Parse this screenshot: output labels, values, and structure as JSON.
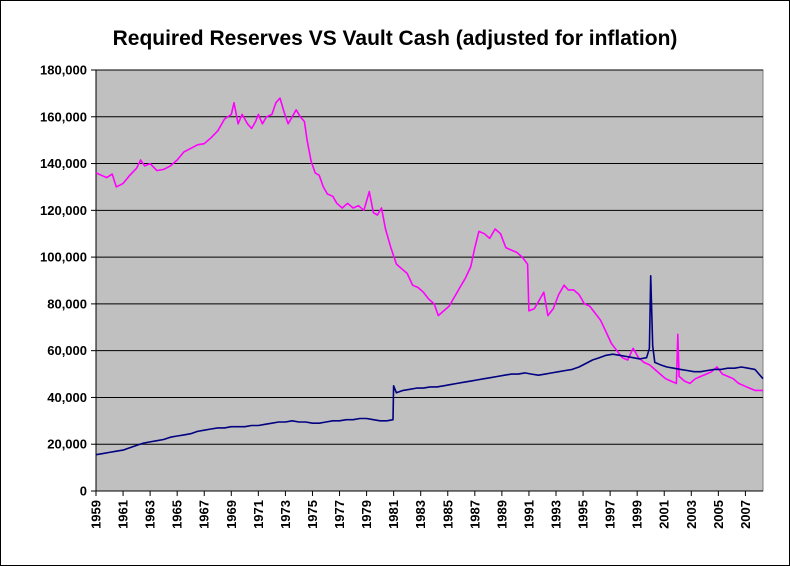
{
  "chart_data": {
    "type": "line",
    "title": "Required Reserves VS Vault Cash (adjusted for inflation)",
    "xlabel": "",
    "ylabel": "",
    "xlim": [
      1959,
      2008.3
    ],
    "ylim": [
      0,
      180000
    ],
    "y_ticks": [
      0,
      20000,
      40000,
      60000,
      80000,
      100000,
      120000,
      140000,
      160000,
      180000
    ],
    "y_tick_labels": [
      "0",
      "20,000",
      "40,000",
      "60,000",
      "80,000",
      "100,000",
      "120,000",
      "140,000",
      "160,000",
      "180,000"
    ],
    "x_ticks": [
      1959,
      1961,
      1963,
      1965,
      1967,
      1969,
      1971,
      1973,
      1975,
      1977,
      1979,
      1981,
      1983,
      1985,
      1987,
      1989,
      1991,
      1993,
      1995,
      1997,
      1999,
      2001,
      2003,
      2005,
      2007
    ],
    "grid": true,
    "legend": "none",
    "plot_background": "#c0c0c0",
    "series": [
      {
        "color": "#ff00ff",
        "points": [
          [
            1959.0,
            136000
          ],
          [
            1959.4,
            135000
          ],
          [
            1959.8,
            134000
          ],
          [
            1960.2,
            135500
          ],
          [
            1960.5,
            130000
          ],
          [
            1961.0,
            131500
          ],
          [
            1961.5,
            135000
          ],
          [
            1962.0,
            138000
          ],
          [
            1962.3,
            141500
          ],
          [
            1962.6,
            139000
          ],
          [
            1963.0,
            140000
          ],
          [
            1963.5,
            137000
          ],
          [
            1964.0,
            137500
          ],
          [
            1964.5,
            139000
          ],
          [
            1965.0,
            141500
          ],
          [
            1965.5,
            145000
          ],
          [
            1966.0,
            146500
          ],
          [
            1966.5,
            148000
          ],
          [
            1967.0,
            148500
          ],
          [
            1967.5,
            151000
          ],
          [
            1968.0,
            154000
          ],
          [
            1968.5,
            159000
          ],
          [
            1969.0,
            161000
          ],
          [
            1969.2,
            166000
          ],
          [
            1969.5,
            157000
          ],
          [
            1969.8,
            161000
          ],
          [
            1970.2,
            157000
          ],
          [
            1970.5,
            155000
          ],
          [
            1970.8,
            158000
          ],
          [
            1971.0,
            161000
          ],
          [
            1971.3,
            157000
          ],
          [
            1971.6,
            160000
          ],
          [
            1972.0,
            161000
          ],
          [
            1972.3,
            166000
          ],
          [
            1972.6,
            168000
          ],
          [
            1972.9,
            162000
          ],
          [
            1973.2,
            157000
          ],
          [
            1973.5,
            160000
          ],
          [
            1973.8,
            163000
          ],
          [
            1974.1,
            160000
          ],
          [
            1974.4,
            158000
          ],
          [
            1974.6,
            150000
          ],
          [
            1974.9,
            141000
          ],
          [
            1975.2,
            136000
          ],
          [
            1975.5,
            135000
          ],
          [
            1975.8,
            130000
          ],
          [
            1976.1,
            127000
          ],
          [
            1976.5,
            126000
          ],
          [
            1976.8,
            123000
          ],
          [
            1977.2,
            121000
          ],
          [
            1977.6,
            123000
          ],
          [
            1978.0,
            121000
          ],
          [
            1978.4,
            122000
          ],
          [
            1978.8,
            120000
          ],
          [
            1979.2,
            128000
          ],
          [
            1979.5,
            119000
          ],
          [
            1979.8,
            118000
          ],
          [
            1980.1,
            121000
          ],
          [
            1980.4,
            112000
          ],
          [
            1980.8,
            104000
          ],
          [
            1981.2,
            97000
          ],
          [
            1981.6,
            95000
          ],
          [
            1982.0,
            93000
          ],
          [
            1982.4,
            88000
          ],
          [
            1982.8,
            87000
          ],
          [
            1983.2,
            85000
          ],
          [
            1983.6,
            82000
          ],
          [
            1984.0,
            80000
          ],
          [
            1984.3,
            75000
          ],
          [
            1984.7,
            77000
          ],
          [
            1985.1,
            79000
          ],
          [
            1985.5,
            83000
          ],
          [
            1985.9,
            87000
          ],
          [
            1986.3,
            91000
          ],
          [
            1986.7,
            96000
          ],
          [
            1987.0,
            104000
          ],
          [
            1987.3,
            111000
          ],
          [
            1987.7,
            110000
          ],
          [
            1988.1,
            108000
          ],
          [
            1988.5,
            112000
          ],
          [
            1988.9,
            110000
          ],
          [
            1989.3,
            104000
          ],
          [
            1989.7,
            103000
          ],
          [
            1990.1,
            102000
          ],
          [
            1990.5,
            100000
          ],
          [
            1990.9,
            97000
          ],
          [
            1991.0,
            77000
          ],
          [
            1991.4,
            78000
          ],
          [
            1991.8,
            82000
          ],
          [
            1992.1,
            85000
          ],
          [
            1992.4,
            75000
          ],
          [
            1992.8,
            78000
          ],
          [
            1993.2,
            84000
          ],
          [
            1993.6,
            88000
          ],
          [
            1993.9,
            86000
          ],
          [
            1994.3,
            86000
          ],
          [
            1994.7,
            84000
          ],
          [
            1995.1,
            80000
          ],
          [
            1995.5,
            79000
          ],
          [
            1995.9,
            76000
          ],
          [
            1996.3,
            73000
          ],
          [
            1996.7,
            68000
          ],
          [
            1997.1,
            63000
          ],
          [
            1997.5,
            60000
          ],
          [
            1997.9,
            57000
          ],
          [
            1998.3,
            56000
          ],
          [
            1998.7,
            61000
          ],
          [
            1999.1,
            57000
          ],
          [
            1999.5,
            55000
          ],
          [
            1999.9,
            54000
          ],
          [
            2000.3,
            52000
          ],
          [
            2000.7,
            50000
          ],
          [
            2001.1,
            48000
          ],
          [
            2001.5,
            47000
          ],
          [
            2001.9,
            46000
          ],
          [
            2002.0,
            67000
          ],
          [
            2002.1,
            49000
          ],
          [
            2002.5,
            47000
          ],
          [
            2002.9,
            46000
          ],
          [
            2003.3,
            48000
          ],
          [
            2003.7,
            49000
          ],
          [
            2004.1,
            50000
          ],
          [
            2004.5,
            51000
          ],
          [
            2004.9,
            53000
          ],
          [
            2005.3,
            50000
          ],
          [
            2005.7,
            49000
          ],
          [
            2006.1,
            48000
          ],
          [
            2006.5,
            46000
          ],
          [
            2006.9,
            45000
          ],
          [
            2007.3,
            44000
          ],
          [
            2007.7,
            43000
          ],
          [
            2008.3,
            43000
          ]
        ]
      },
      {
        "color": "#000080",
        "points": [
          [
            1959.0,
            15500
          ],
          [
            1959.5,
            16000
          ],
          [
            1960.0,
            16500
          ],
          [
            1960.5,
            17000
          ],
          [
            1961.0,
            17500
          ],
          [
            1961.5,
            18500
          ],
          [
            1962.0,
            19500
          ],
          [
            1962.5,
            20500
          ],
          [
            1963.0,
            21000
          ],
          [
            1963.5,
            21500
          ],
          [
            1964.0,
            22000
          ],
          [
            1964.5,
            23000
          ],
          [
            1965.0,
            23500
          ],
          [
            1965.5,
            24000
          ],
          [
            1966.0,
            24500
          ],
          [
            1966.5,
            25500
          ],
          [
            1967.0,
            26000
          ],
          [
            1967.5,
            26500
          ],
          [
            1968.0,
            27000
          ],
          [
            1968.5,
            27000
          ],
          [
            1969.0,
            27500
          ],
          [
            1969.5,
            27500
          ],
          [
            1970.0,
            27500
          ],
          [
            1970.5,
            28000
          ],
          [
            1971.0,
            28000
          ],
          [
            1971.5,
            28500
          ],
          [
            1972.0,
            29000
          ],
          [
            1972.5,
            29500
          ],
          [
            1973.0,
            29500
          ],
          [
            1973.5,
            30000
          ],
          [
            1974.0,
            29500
          ],
          [
            1974.5,
            29500
          ],
          [
            1975.0,
            29000
          ],
          [
            1975.5,
            29000
          ],
          [
            1976.0,
            29500
          ],
          [
            1976.5,
            30000
          ],
          [
            1977.0,
            30000
          ],
          [
            1977.5,
            30500
          ],
          [
            1978.0,
            30500
          ],
          [
            1978.5,
            31000
          ],
          [
            1979.0,
            31000
          ],
          [
            1979.5,
            30500
          ],
          [
            1980.0,
            30000
          ],
          [
            1980.5,
            30000
          ],
          [
            1980.95,
            30500
          ],
          [
            1981.0,
            45000
          ],
          [
            1981.2,
            42000
          ],
          [
            1981.7,
            43000
          ],
          [
            1982.2,
            43500
          ],
          [
            1982.7,
            44000
          ],
          [
            1983.2,
            44000
          ],
          [
            1983.7,
            44500
          ],
          [
            1984.2,
            44500
          ],
          [
            1984.7,
            45000
          ],
          [
            1985.2,
            45500
          ],
          [
            1985.7,
            46000
          ],
          [
            1986.2,
            46500
          ],
          [
            1986.7,
            47000
          ],
          [
            1987.2,
            47500
          ],
          [
            1987.7,
            48000
          ],
          [
            1988.2,
            48500
          ],
          [
            1988.7,
            49000
          ],
          [
            1989.2,
            49500
          ],
          [
            1989.7,
            50000
          ],
          [
            1990.2,
            50000
          ],
          [
            1990.7,
            50500
          ],
          [
            1991.2,
            50000
          ],
          [
            1991.7,
            49500
          ],
          [
            1992.2,
            50000
          ],
          [
            1992.7,
            50500
          ],
          [
            1993.2,
            51000
          ],
          [
            1993.7,
            51500
          ],
          [
            1994.2,
            52000
          ],
          [
            1994.7,
            53000
          ],
          [
            1995.2,
            54500
          ],
          [
            1995.7,
            56000
          ],
          [
            1996.2,
            57000
          ],
          [
            1996.7,
            58000
          ],
          [
            1997.2,
            58500
          ],
          [
            1997.7,
            58000
          ],
          [
            1998.2,
            57500
          ],
          [
            1998.7,
            57000
          ],
          [
            1999.2,
            56500
          ],
          [
            1999.7,
            57000
          ],
          [
            1999.9,
            61000
          ],
          [
            2000.0,
            92000
          ],
          [
            2000.15,
            62000
          ],
          [
            2000.3,
            55000
          ],
          [
            2000.7,
            54000
          ],
          [
            2001.2,
            53000
          ],
          [
            2001.7,
            52500
          ],
          [
            2002.2,
            52000
          ],
          [
            2002.7,
            51500
          ],
          [
            2003.2,
            51000
          ],
          [
            2003.7,
            51000
          ],
          [
            2004.2,
            51500
          ],
          [
            2004.7,
            52000
          ],
          [
            2005.2,
            52000
          ],
          [
            2005.7,
            52500
          ],
          [
            2006.2,
            52500
          ],
          [
            2006.7,
            53000
          ],
          [
            2007.2,
            52500
          ],
          [
            2007.7,
            52000
          ],
          [
            2008.3,
            48000
          ]
        ]
      }
    ]
  }
}
